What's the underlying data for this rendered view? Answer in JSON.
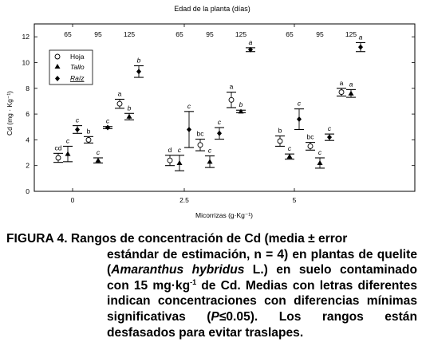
{
  "chart_data": {
    "type": "scatter",
    "top_label": "Edad de la planta (días)",
    "xlabel": "Micorrizas (g·Kg⁻¹)",
    "ylabel": "Cd (mg · Kg⁻¹)",
    "xticks": [
      "0",
      "2.5",
      "5"
    ],
    "yticks": [
      "0",
      "2",
      "4",
      "6",
      "8",
      "10",
      "12"
    ],
    "ylim": [
      0,
      13
    ],
    "age_labels": [
      "65",
      "95",
      "125",
      "65",
      "95",
      "125",
      "65",
      "95",
      "125"
    ],
    "legend": {
      "placement": "top-left",
      "entries": [
        "Hoja",
        "Tallo",
        "Raíz"
      ]
    },
    "legend_colors": {
      "Hoja": "#ffffff",
      "Tallo": "#000000",
      "Raíz": "#000000"
    },
    "series": [
      {
        "name": "Hoja",
        "marker": "circle-open",
        "values": [
          2.6,
          4.0,
          6.8,
          2.4,
          3.6,
          7.1,
          3.9,
          3.5,
          7.7
        ],
        "errors": [
          0.35,
          0.25,
          0.35,
          0.4,
          0.45,
          0.6,
          0.4,
          0.3,
          0.3
        ],
        "letters": [
          "cd",
          "b",
          "a",
          "d",
          "bc",
          "a",
          "b",
          "bc",
          "a"
        ]
      },
      {
        "name": "Tallo",
        "marker": "triangle",
        "values": [
          2.9,
          2.4,
          5.8,
          2.2,
          2.3,
          6.2,
          2.7,
          2.2,
          7.6
        ],
        "errors": [
          0.6,
          0.2,
          0.25,
          0.6,
          0.45,
          0.1,
          0.2,
          0.4,
          0.3
        ],
        "letters": [
          "c",
          "c",
          "b",
          "c",
          "c",
          "b",
          "c",
          "c",
          "a"
        ]
      },
      {
        "name": "Raíz",
        "marker": "diamond",
        "values": [
          4.8,
          4.95,
          9.3,
          4.8,
          4.5,
          11.0,
          5.6,
          4.2,
          11.2
        ],
        "errors": [
          0.3,
          0.08,
          0.45,
          1.4,
          0.45,
          0.15,
          0.8,
          0.25,
          0.35
        ],
        "letters": [
          "c",
          "c",
          "b",
          "c",
          "c",
          "a",
          "c",
          "c",
          "a"
        ]
      }
    ]
  },
  "caption": {
    "label": "FIGURA 4.",
    "line1": "Rangos de concentración de Cd (media ± error",
    "p2a": "estándar de estimación, n = 4) en plantas de quelite (",
    "p2b": "Amaranthus hybridus",
    "p2c": " L.) en suelo contaminado con 15 mg·kg",
    "p2sup": "-1",
    "p2d": " de Cd. Medias con letras diferentes indican concentraciones con diferencias mínimas significativas (",
    "p2e": "P",
    "p2f": "≤0.05). Los rangos están desfasados para evitar traslapes."
  }
}
